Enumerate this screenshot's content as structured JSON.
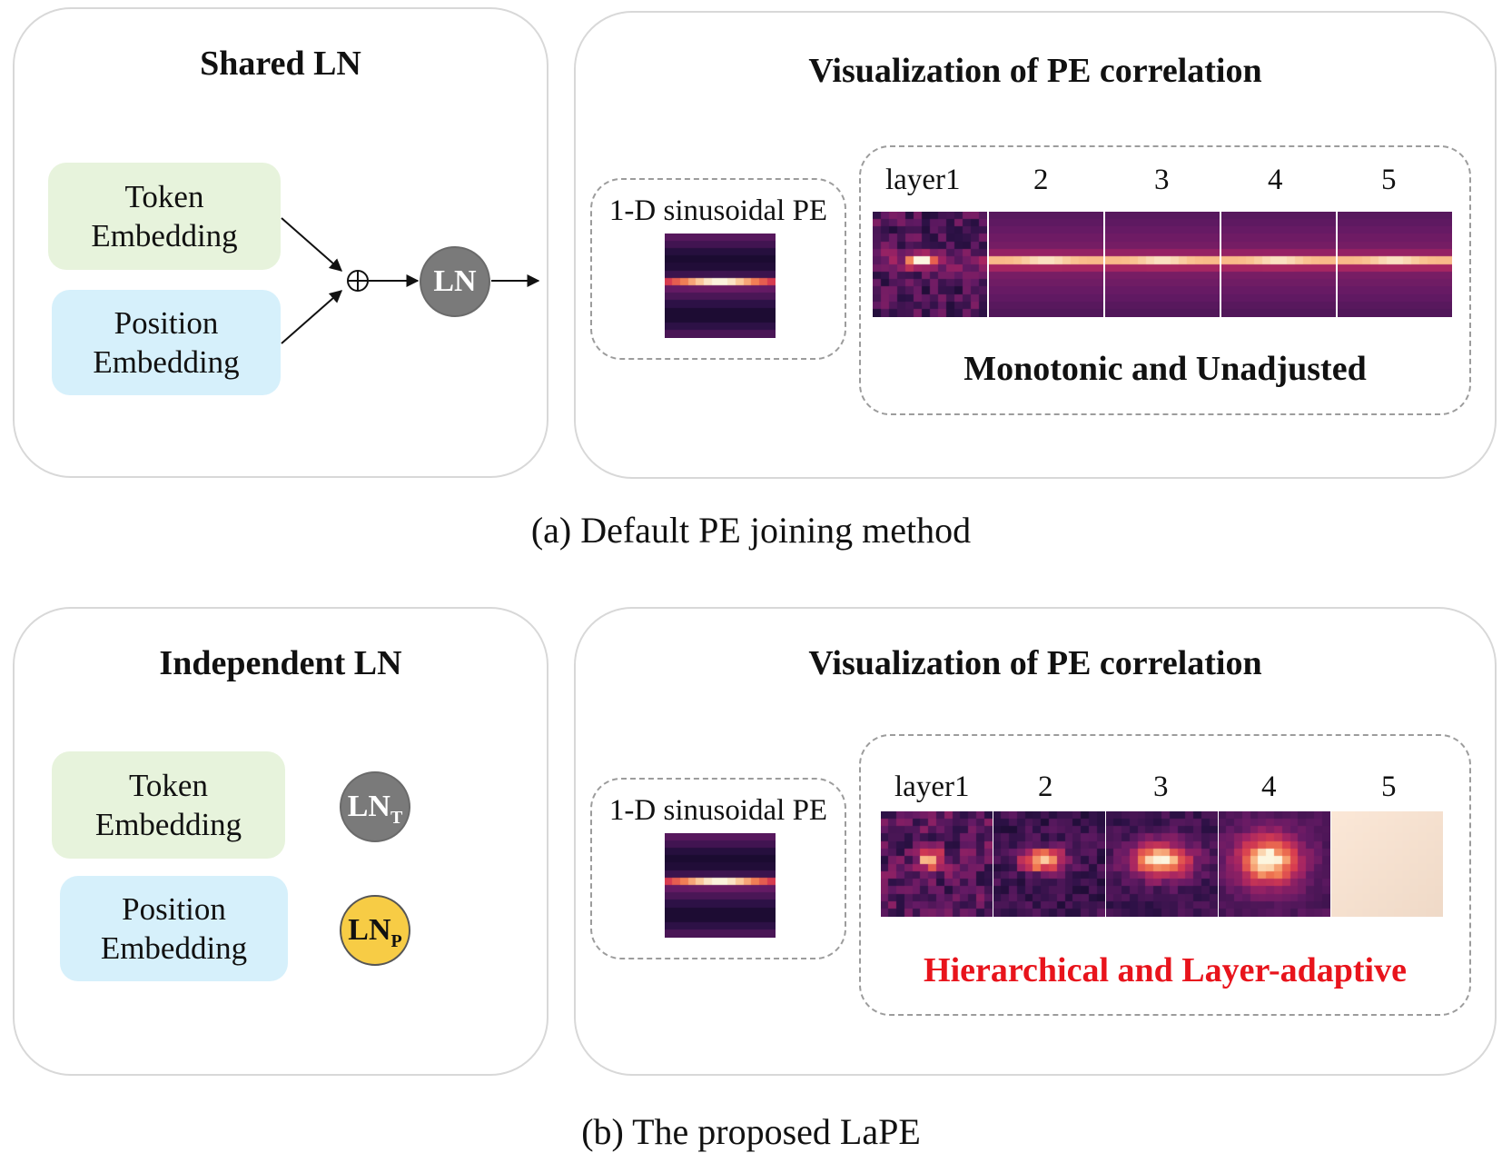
{
  "panel_a": {
    "left_title": "Shared LN",
    "token_line1": "Token",
    "token_line2": "Embedding",
    "position_line1": "Position",
    "position_line2": "Embedding",
    "ln_label": "LN",
    "right_title": "Visualization of PE correlation",
    "sinusoidal_label": "1-D sinusoidal PE",
    "layer_labels": [
      "layer1",
      "2",
      "3",
      "4",
      "5"
    ],
    "summary": "Monotonic and Unadjusted",
    "caption": "(a) Default PE joining method"
  },
  "panel_b": {
    "left_title": "Independent LN",
    "token_line1": "Token",
    "token_line2": "Embedding",
    "position_line1": "Position",
    "position_line2": "Embedding",
    "ln_t_main": "LN",
    "ln_t_sub": "T",
    "ln_p_main": "LN",
    "ln_p_sub": "P",
    "right_title": "Visualization of PE correlation",
    "sinusoidal_label": "1-D sinusoidal PE",
    "layer_labels": [
      "layer1",
      "2",
      "3",
      "4",
      "5"
    ],
    "summary": "Hierarchical and Layer-adaptive",
    "caption": "(b) The proposed LaPE"
  },
  "symbols": {
    "plus": "⊕"
  },
  "colors": {
    "token_bg": "#e7f3dc",
    "position_bg": "#d6f0fb",
    "ln_gray": "#7a7a7a",
    "ln_yellow": "#f7cc45",
    "highlight_red": "#e8141c"
  }
}
